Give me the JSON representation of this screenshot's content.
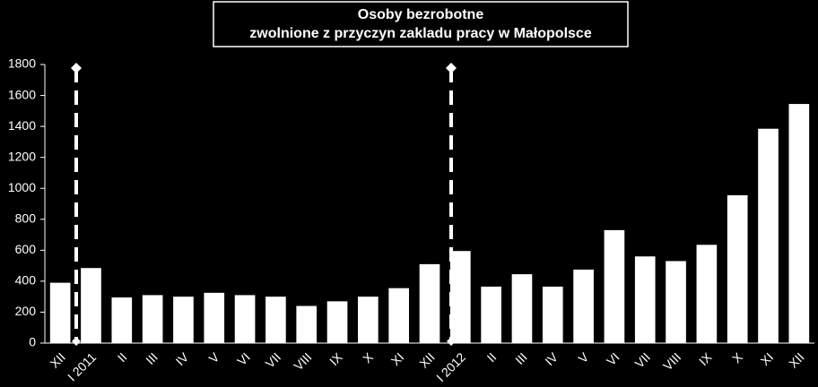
{
  "chart_data": {
    "type": "bar",
    "title": "Osoby bezrobotne",
    "subtitle": "zwolnione z przyczyn zakladu pracy w Małopolsce",
    "categories": [
      "XII",
      "I 2011",
      "II",
      "III",
      "IV",
      "V",
      "VI",
      "VII",
      "VIII",
      "IX",
      "X",
      "XI",
      "XII",
      "I 2012",
      "II",
      "III",
      "IV",
      "V",
      "VI",
      "VII",
      "VIII",
      "IX",
      "X",
      "XI",
      "XII"
    ],
    "values": [
      390,
      485,
      295,
      310,
      300,
      325,
      310,
      300,
      240,
      270,
      300,
      355,
      510,
      595,
      365,
      445,
      365,
      475,
      730,
      560,
      530,
      635,
      955,
      1385,
      1545
    ],
    "color": "#ffffff",
    "ylim": [
      0,
      1800
    ],
    "yticks": [
      0,
      200,
      400,
      600,
      800,
      1000,
      1200,
      1400,
      1600,
      1800
    ],
    "grid": false
  }
}
